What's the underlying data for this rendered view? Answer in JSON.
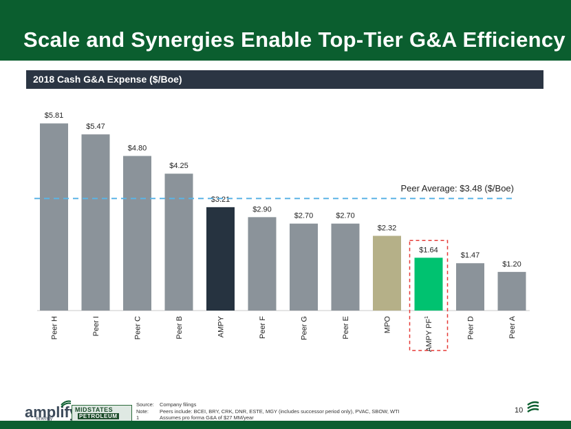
{
  "slide": {
    "title": "Scale and Synergies Enable Top-Tier G&A Efficiency",
    "page_number": "10"
  },
  "colors": {
    "brand_green": "#0b5e2f",
    "header_dark": "#2b3543",
    "peer_gray": "#8b939a",
    "ampy_navy": "#263340",
    "mpo_khaki": "#b5b088",
    "ampy_pf_green": "#00c270",
    "average_line": "#5bb4e5",
    "highlight_box": "#e53935"
  },
  "chart_data": {
    "type": "bar",
    "title": "2018 Cash G&A Expense ($/Boe)",
    "categories": [
      "Peer H",
      "Peer I",
      "Peer C",
      "Peer B",
      "AMPY",
      "Peer F",
      "Peer G",
      "Peer E",
      "MPO",
      "AMPY PF",
      "Peer D",
      "Peer A"
    ],
    "values": [
      5.81,
      5.47,
      4.8,
      4.25,
      3.21,
      2.9,
      2.7,
      2.7,
      2.32,
      1.64,
      1.47,
      1.2
    ],
    "value_labels": [
      "$5.81",
      "$5.47",
      "$4.80",
      "$4.25",
      "$3.21",
      "$2.90",
      "$2.70",
      "$2.70",
      "$2.32",
      "$1.64",
      "$1.47",
      "$1.20"
    ],
    "category_superscripts": [
      "",
      "",
      "",
      "",
      "",
      "",
      "",
      "",
      "",
      "1",
      "",
      ""
    ],
    "bar_colors": [
      "#8b939a",
      "#8b939a",
      "#8b939a",
      "#8b939a",
      "#263340",
      "#8b939a",
      "#8b939a",
      "#8b939a",
      "#b5b088",
      "#00c270",
      "#8b939a",
      "#8b939a"
    ],
    "highlighted_category": "AMPY PF",
    "reference_line": {
      "value": 3.48,
      "label": "Peer Average: $3.48 ($/Boe)"
    },
    "ylim": [
      0,
      6.2
    ],
    "xlabel": "",
    "ylabel": "",
    "grid": false
  },
  "logos": {
    "amplify": "amplify",
    "amplify_sub": "energy",
    "midstates_top": "MIDSTATES",
    "midstates_bottom": "PETROLEUM"
  },
  "footnotes": [
    {
      "key": "Source:",
      "text": "Company filings"
    },
    {
      "key": "Note:",
      "text": "Peers include: BCEI, BRY, CRK, DNR, ESTE, MGY (includes successor period only), PVAC, SBOW, WTI"
    },
    {
      "key": "1",
      "text": "Assumes pro forma G&A of $27 MM/year"
    }
  ]
}
